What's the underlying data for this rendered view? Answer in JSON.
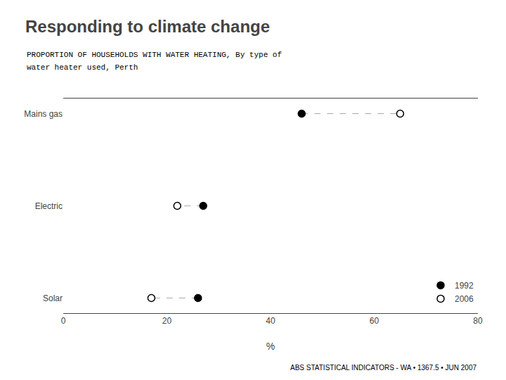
{
  "chart_data": {
    "type": "dumbbell",
    "title": "Responding to climate change",
    "subtitle": [
      "PROPORTION OF HOUSEHOLDS WITH WATER HEATING, By type of",
      "water heater used, Perth"
    ],
    "annotations": [
      "ABS STATISTICAL INDICATORS - WA • 1367.5 • JUN 2007"
    ],
    "categories": [
      "Mains gas",
      "Electric",
      "Solar"
    ],
    "series": [
      {
        "name": "1992",
        "values": [
          46,
          27,
          26
        ],
        "color": "#000000",
        "marker": "filled"
      },
      {
        "name": "2006",
        "values": [
          65,
          22,
          17
        ],
        "color": "#000000",
        "marker": "open"
      }
    ],
    "color": "#aaaaaa",
    "line_style": "dashed",
    "orientation": "horizontal",
    "xlabel": "%",
    "xlim": [
      0,
      80
    ],
    "xticks": [
      0,
      20,
      40,
      60,
      80
    ],
    "grid": false,
    "legend": "lower right"
  }
}
